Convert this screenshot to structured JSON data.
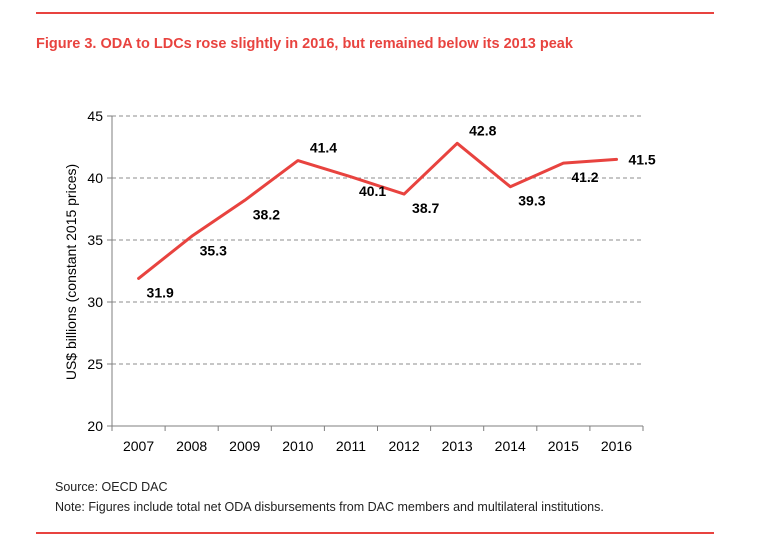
{
  "title": "Figure 3. ODA to LDCs rose slightly in 2016, but remained below its 2013 peak",
  "source": "Source: OECD DAC",
  "note": "Note: Figures include total net ODA disbursements from DAC members and multilateral institutions.",
  "colors": {
    "accent": "#e8433f",
    "line": "#e8433f",
    "grid": "#8c8c8c",
    "axis": "#7f7f7f",
    "text": "#000000"
  },
  "chart_data": {
    "type": "line",
    "ylabel": "US$ billions (constant 2015 prices)",
    "xlabel": "",
    "categories": [
      "2007",
      "2008",
      "2009",
      "2010",
      "2011",
      "2012",
      "2013",
      "2014",
      "2015",
      "2016"
    ],
    "series": [
      {
        "values": [
          31.9,
          35.3,
          38.2,
          41.4,
          40.1,
          38.7,
          42.8,
          39.3,
          41.2,
          41.5
        ]
      }
    ],
    "ylim": [
      20,
      45
    ],
    "yticks": [
      20,
      25,
      30,
      35,
      40,
      45
    ],
    "grid": "horizontal dashed",
    "legend": "none"
  }
}
